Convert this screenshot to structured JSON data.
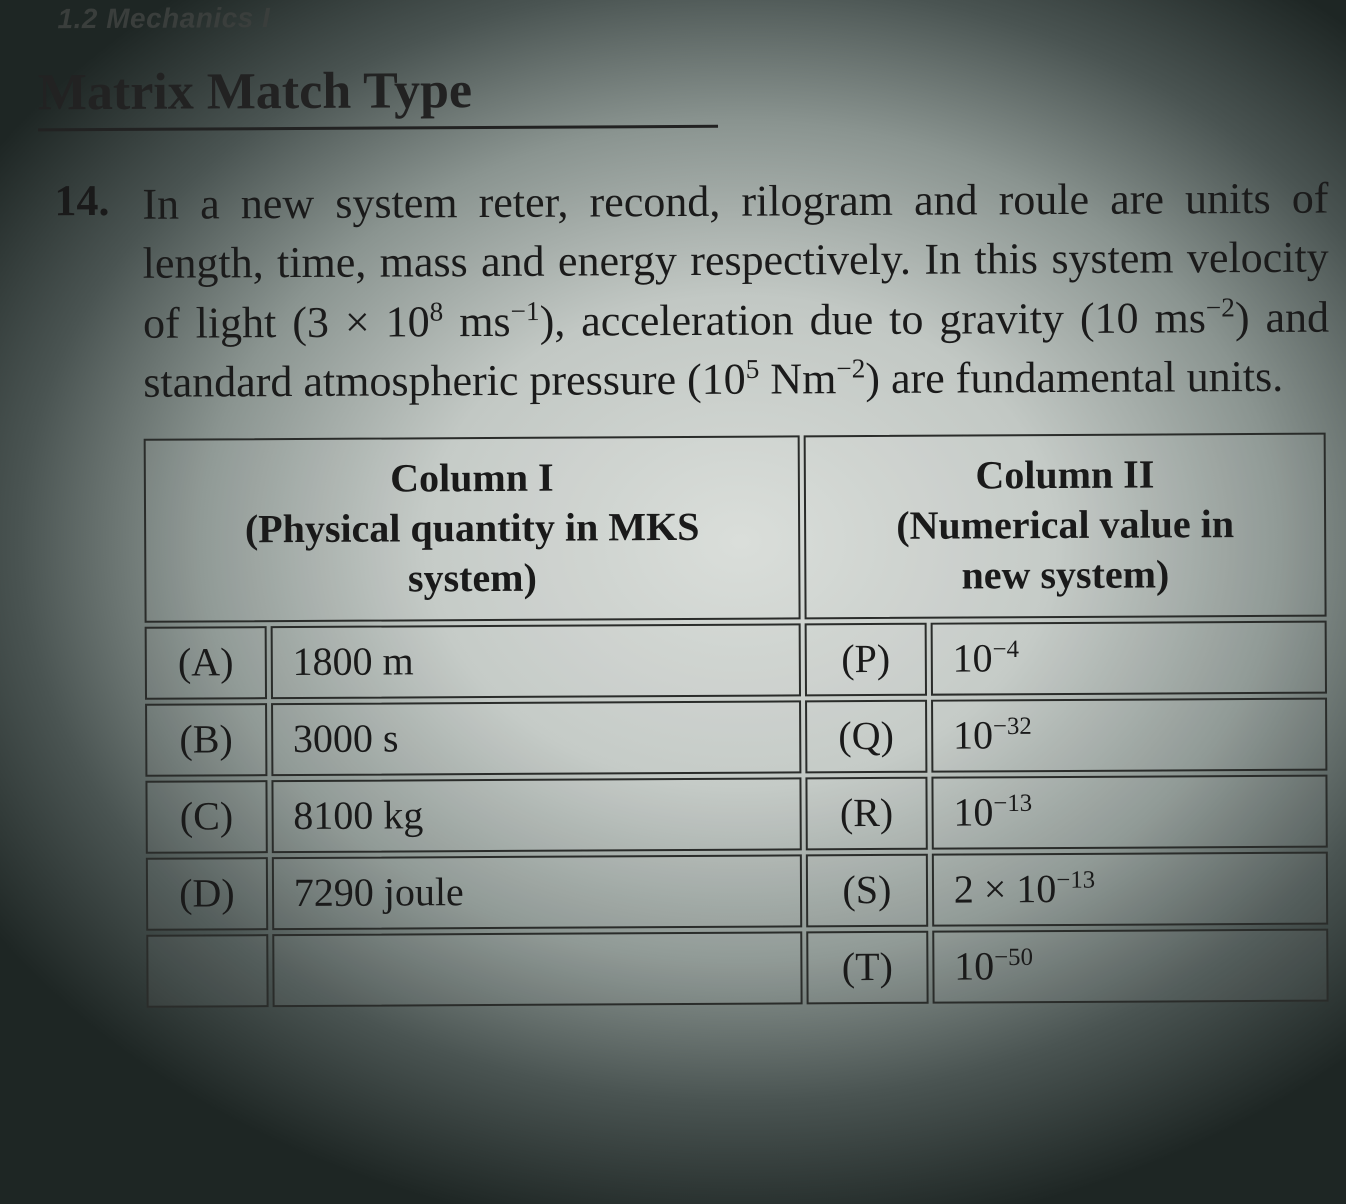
{
  "chapter": "1.2  Mechanics I",
  "section_title": "Matrix Match Type",
  "question": {
    "number": "14.",
    "text_parts": {
      "p1": "In a new system reter, recond, rilogram and roule are units of length, time, mass and energy respectively. In this system velocity of light (3 × 10",
      "exp1": "8",
      "p2": " ms",
      "exp2": "−1",
      "p3": "), acceleration due to gravity (10 ms",
      "exp3": "−2",
      "p4": ") and standard atmospheric pressure (10",
      "exp4": "5",
      "p5": " Nm",
      "exp5": "−2",
      "p6": ") are fundamental units."
    }
  },
  "table": {
    "header_col1_line1": "Column I",
    "header_col1_line2": "(Physical quantity in MKS",
    "header_col1_line3": "system)",
    "header_col2_line1": "Column II",
    "header_col2_line2": "(Numerical value in",
    "header_col2_line3": "new system)",
    "rows": [
      {
        "c1_label": "(A)",
        "c1_value": "1800 m",
        "c2_label": "(P)",
        "c2_value_base": "10",
        "c2_value_exp": "−4"
      },
      {
        "c1_label": "(B)",
        "c1_value": "3000 s",
        "c2_label": "(Q)",
        "c2_value_base": "10",
        "c2_value_exp": "−32"
      },
      {
        "c1_label": "(C)",
        "c1_value": "8100 kg",
        "c2_label": "(R)",
        "c2_value_base": "10",
        "c2_value_exp": "−13"
      },
      {
        "c1_label": "(D)",
        "c1_value": "7290 joule",
        "c2_label": "(S)",
        "c2_value_base": "2 × 10",
        "c2_value_exp": "−13"
      },
      {
        "c1_label": "",
        "c1_value": "",
        "c2_label": "(T)",
        "c2_value_base": "10",
        "c2_value_exp": "−50"
      }
    ]
  }
}
